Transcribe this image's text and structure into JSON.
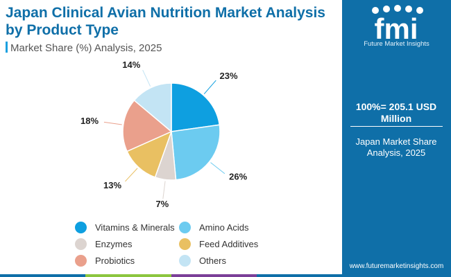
{
  "header": {
    "title": "Japan Clinical Avian Nutrition Market Analysis by Product Type",
    "subtitle": "Market Share (%) Analysis, 2025"
  },
  "chart_data": {
    "type": "pie",
    "title": "Japan Clinical Avian Nutrition Market Analysis by Product Type",
    "subtitle": "Market Share (%) Analysis, 2025",
    "categories": [
      "Vitamins & Minerals",
      "Amino Acids",
      "Enzymes",
      "Feed Additives",
      "Probiotics",
      "Others"
    ],
    "values": [
      23,
      26,
      7,
      13,
      18,
      14
    ],
    "labels": [
      "23%",
      "26%",
      "7%",
      "13%",
      "18%",
      "14%"
    ],
    "colors": [
      "#0e9fe0",
      "#6ccbf0",
      "#dcd4d0",
      "#e9c062",
      "#eaa08c",
      "#c3e4f4"
    ],
    "legend_position": "bottom"
  },
  "sidebar": {
    "brand_name": "Future Market Insights",
    "total_label": "100%=  205.1 USD Million",
    "region_label": "Japan Market Share Analysis, 2025",
    "website": "www.futuremarketinsights.com"
  },
  "bottom_bar_colors": [
    "#0f6fa8",
    "#8cc63f",
    "#7b3f98",
    "#0f6fa8"
  ]
}
